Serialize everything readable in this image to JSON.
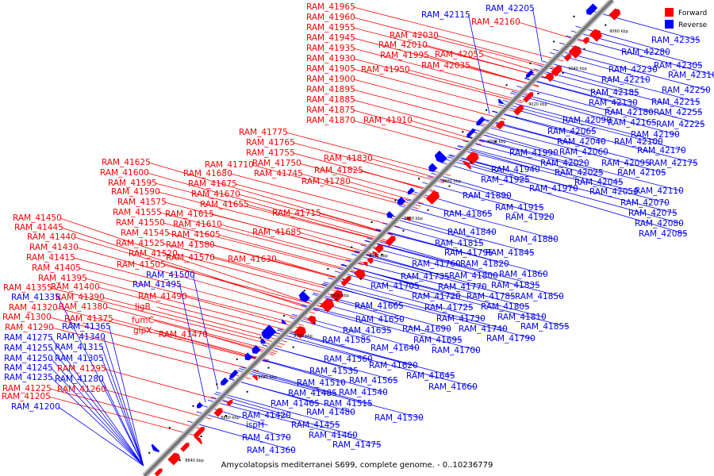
{
  "caption": "Amycolatopsis mediterranei S699, complete genome. - 0..10236779",
  "legend": [
    {
      "label": "Forward",
      "color": "#ff0000"
    },
    {
      "label": "Reverse",
      "color": "#0000ff"
    }
  ],
  "colors": {
    "forward": "#ff0000",
    "reverse": "#0000ff",
    "axis": "#777777"
  },
  "ticks": [
    "8840 kbp",
    "8860 kbp",
    "8880 kbp",
    "8900 kbp",
    "8920 kbp",
    "8940 kbp",
    "8960 kbp",
    "8980 kbp",
    "9000 kbp",
    "9020 kbp",
    "9040 kbp",
    "9060 kbp"
  ],
  "forward_labels": [
    "RAM_41965",
    "RAM_41960",
    "RAM_41955",
    "RAM_41945",
    "RAM_41935",
    "RAM_41930",
    "RAM_41905",
    "RAM_41900",
    "RAM_41895",
    "RAM_41885",
    "RAM_41875",
    "RAM_41870",
    "RAM_42030",
    "RAM_42010",
    "RAM_41995",
    "RAM_41950",
    "RAM_42055",
    "RAM_42035",
    "RAM_41910",
    "RAM_42160",
    "RAM_41775",
    "RAM_41765",
    "RAM_41755",
    "RAM_41750",
    "RAM_41745",
    "RAM_41710",
    "RAM_41830",
    "RAM_41825",
    "RAM_41780",
    "RAM_41625",
    "RAM_41600",
    "RAM_41595",
    "RAM_41590",
    "RAM_41575",
    "RAM_41555",
    "RAM_41550",
    "RAM_41545",
    "RAM_41525",
    "RAM_41520",
    "RAM_41505",
    "RAM_41680",
    "RAM_41675",
    "RAM_41670",
    "RAM_41655",
    "RAM_41615",
    "RAM_41610",
    "RAM_41605",
    "RAM_41580",
    "RAM_41570",
    "RAM_41715",
    "RAM_41685",
    "RAM_41630",
    "RAM_41450",
    "RAM_41445",
    "RAM_41440",
    "RAM_41430",
    "RAM_41415",
    "RAM_41405",
    "RAM_41395",
    "RAM_41355",
    "RAM_41400",
    "RAM_41390",
    "RAM_41320",
    "RAM_41380",
    "RAM_41300",
    "RAM_41375",
    "RAM_41290",
    "RAM_41295",
    "RAM_41225",
    "RAM_41260",
    "RAM_41205",
    "ligB",
    "fumC",
    "glpX",
    "RAM_41490",
    "RAM_41470"
  ],
  "reverse_labels": [
    "RAM_42115",
    "RAM_42205",
    "RAM_42335",
    "RAM_42280",
    "RAM_42305",
    "RAM_42310",
    "RAM_42230",
    "RAM_42210",
    "RAM_42250",
    "RAM_42185",
    "RAM_42215",
    "RAM_42130",
    "RAM_42180",
    "RAM_42255",
    "RAM_42090",
    "RAM_42165",
    "RAM_42225",
    "RAM_42065",
    "RAM_42190",
    "RAM_42040",
    "RAM_42100",
    "RAM_41990",
    "RAM_42060",
    "RAM_42170",
    "RAM_42020",
    "RAM_42095",
    "RAM_42175",
    "RAM_41940",
    "RAM_42025",
    "RAM_42105",
    "RAM_41925",
    "RAM_42045",
    "RAM_41970",
    "RAM_42050",
    "RAM_42110",
    "RAM_41890",
    "RAM_42070",
    "RAM_41915",
    "RAM_42075",
    "RAM_41865",
    "RAM_41920",
    "RAM_42080",
    "RAM_41840",
    "RAM_42085",
    "RAM_41880",
    "RAM_41815",
    "RAM_41795",
    "RAM_41845",
    "RAM_41760",
    "RAM_41820",
    "RAM_41735",
    "RAM_41800",
    "RAM_41860",
    "RAM_41705",
    "RAM_41770",
    "RAM_41835",
    "RAM_41720",
    "RAM_41785",
    "RAM_41850",
    "RAM_41665",
    "RAM_41725",
    "RAM_41805",
    "RAM_41650",
    "RAM_41730",
    "RAM_41810",
    "RAM_41635",
    "RAM_41690",
    "RAM_41740",
    "RAM_41855",
    "RAM_41585",
    "RAM_41695",
    "RAM_41790",
    "RAM_41640",
    "RAM_41700",
    "RAM_41560",
    "RAM_41620",
    "RAM_41535",
    "RAM_41645",
    "RAM_41565",
    "RAM_41510",
    "RAM_41660",
    "RAM_41485",
    "RAM_41540",
    "RAM_41515",
    "RAM_41465",
    "RAM_41480",
    "RAM_41530",
    "RAM_41420",
    "RAM_41455",
    "ispH",
    "RAM_41460",
    "RAM_41370",
    "RAM_41475",
    "RAM_41360",
    "RAM_41500",
    "RAM_41495",
    "RAM_41335",
    "RAM_41365",
    "RAM_41275",
    "RAM_41340",
    "RAM_41255",
    "RAM_41315",
    "RAM_41250",
    "RAM_41305",
    "RAM_41245",
    "RAM_41280",
    "RAM_41235",
    "RAM_41200"
  ]
}
